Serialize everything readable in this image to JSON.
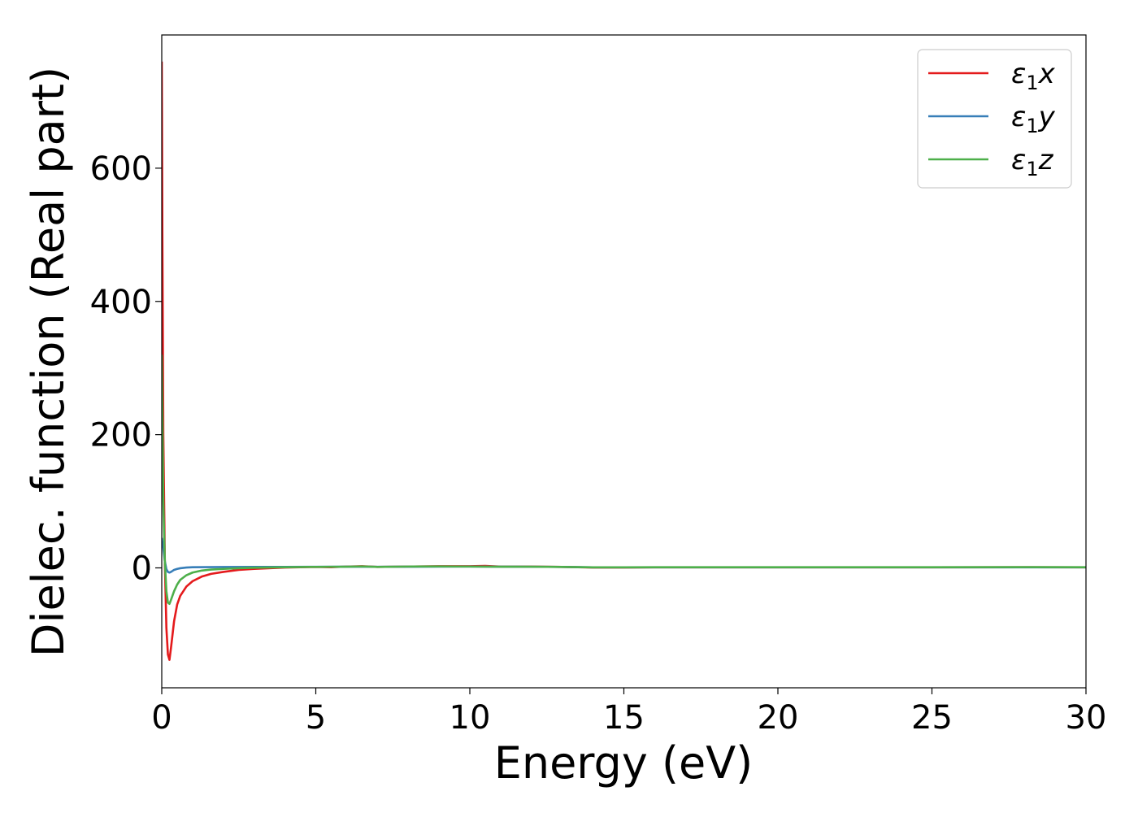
{
  "chart_data": {
    "type": "line",
    "xlabel": "Energy (eV)",
    "ylabel": "Dielec. function (Real part)",
    "xlim": [
      0,
      30
    ],
    "ylim": [
      -180,
      800
    ],
    "xticks": [
      0,
      5,
      10,
      15,
      20,
      25,
      30
    ],
    "yticks": [
      0,
      200,
      400,
      600
    ],
    "grid": false,
    "legend_position": "top-right",
    "series": [
      {
        "name": "ε1x",
        "legend_base": "ε",
        "legend_sub": "1",
        "legend_var": "x",
        "color": "#e41a1c",
        "x": [
          0.0,
          0.02,
          0.05,
          0.1,
          0.15,
          0.2,
          0.25,
          0.3,
          0.4,
          0.5,
          0.6,
          0.8,
          1.0,
          1.3,
          1.6,
          2.0,
          2.5,
          3.0,
          4.0,
          5.0,
          5.5,
          6.0,
          6.5,
          7.0,
          8.0,
          9.0,
          10.0,
          10.5,
          11.0,
          12.0,
          13.0,
          13.5,
          14.0,
          15.0,
          16.0,
          18.0,
          20.0,
          22.0,
          25.0,
          28.0,
          30.0
        ],
        "y": [
          760,
          500,
          200,
          10,
          -90,
          -130,
          -138,
          -120,
          -80,
          -55,
          -42,
          -28,
          -20,
          -13,
          -9,
          -6,
          -3,
          -1.5,
          0.5,
          1.5,
          1.0,
          2.0,
          2.5,
          1.5,
          2.0,
          2.5,
          2.5,
          3.0,
          2.0,
          2.0,
          1.5,
          1.0,
          0.5,
          0.5,
          0.8,
          0.8,
          0.8,
          0.8,
          0.8,
          1.0,
          0.8
        ]
      },
      {
        "name": "ε1y",
        "legend_base": "ε",
        "legend_sub": "1",
        "legend_var": "y",
        "color": "#377eb8",
        "x": [
          0.0,
          0.05,
          0.1,
          0.15,
          0.2,
          0.25,
          0.3,
          0.4,
          0.5,
          0.6,
          0.8,
          1.0,
          1.5,
          2.0,
          3.0,
          4.0,
          5.0,
          6.0,
          7.0,
          8.0,
          9.0,
          10.0,
          11.0,
          12.0,
          13.0,
          13.5,
          14.0,
          15.0,
          16.0,
          18.0,
          20.0,
          22.0,
          25.0,
          28.0,
          30.0
        ],
        "y": [
          45,
          30,
          10,
          -2,
          -6,
          -7,
          -6,
          -3,
          -1.5,
          -0.5,
          0.5,
          1.0,
          1.2,
          1.3,
          1.4,
          1.5,
          1.6,
          1.8,
          1.7,
          1.8,
          1.9,
          2.0,
          1.8,
          1.7,
          1.5,
          1.2,
          0.8,
          0.8,
          0.8,
          0.8,
          0.8,
          0.8,
          0.8,
          0.8,
          0.8
        ]
      },
      {
        "name": "ε1z",
        "legend_base": "ε",
        "legend_sub": "1",
        "legend_var": "z",
        "color": "#4daf4a",
        "x": [
          0.0,
          0.02,
          0.05,
          0.1,
          0.15,
          0.2,
          0.25,
          0.3,
          0.4,
          0.5,
          0.6,
          0.8,
          1.0,
          1.3,
          1.6,
          2.0,
          2.5,
          3.0,
          4.0,
          5.0,
          6.0,
          6.5,
          7.0,
          8.0,
          9.0,
          10.0,
          11.0,
          12.0,
          13.0,
          13.5,
          14.0,
          15.0,
          16.0,
          18.0,
          20.0,
          22.0,
          25.0,
          28.0,
          30.0
        ],
        "y": [
          320,
          230,
          100,
          10,
          -35,
          -52,
          -54,
          -48,
          -35,
          -25,
          -18,
          -11,
          -7,
          -4,
          -2.5,
          -1.5,
          -0.5,
          0.2,
          1.0,
          1.5,
          1.8,
          2.2,
          1.5,
          2.0,
          2.2,
          2.0,
          1.8,
          1.8,
          1.5,
          1.2,
          0.8,
          0.8,
          1.0,
          1.0,
          1.0,
          1.0,
          1.0,
          1.2,
          1.0
        ]
      }
    ]
  }
}
